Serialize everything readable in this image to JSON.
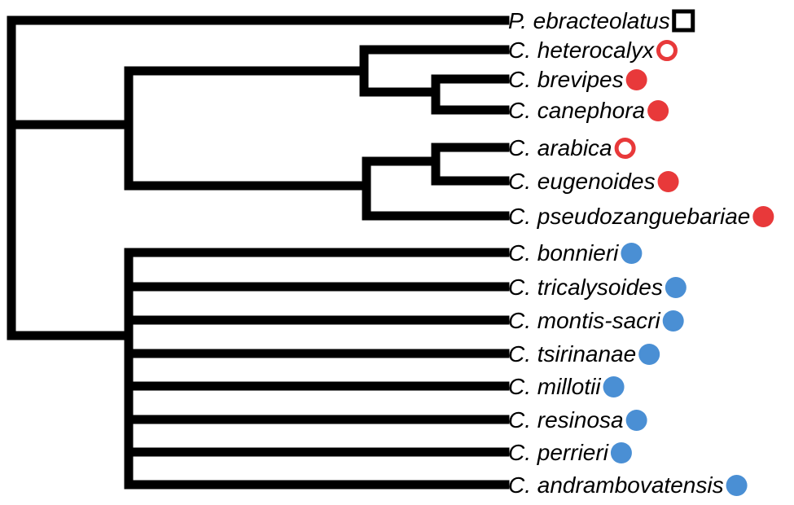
{
  "colors": {
    "branch": "#000000",
    "outgroup_marker": "#000000",
    "red_group": "#e8393a",
    "blue_group": "#4a8fd4"
  },
  "taxa": [
    {
      "name": "P. ebracteolatus",
      "marker": "square-open",
      "color": "#000000"
    },
    {
      "name": "C. heterocalyx",
      "marker": "circle-open",
      "color": "#e8393a"
    },
    {
      "name": "C. brevipes",
      "marker": "circle-filled",
      "color": "#e8393a"
    },
    {
      "name": "C. canephora",
      "marker": "circle-filled",
      "color": "#e8393a"
    },
    {
      "name": "C. arabica",
      "marker": "circle-open",
      "color": "#e8393a"
    },
    {
      "name": "C. eugenoides",
      "marker": "circle-filled",
      "color": "#e8393a"
    },
    {
      "name": "C. pseudozanguebariae",
      "marker": "circle-filled",
      "color": "#e8393a"
    },
    {
      "name": "C. bonnieri",
      "marker": "circle-filled",
      "color": "#4a8fd4"
    },
    {
      "name": "C. tricalysoides",
      "marker": "circle-filled",
      "color": "#4a8fd4"
    },
    {
      "name": "C. montis-sacri",
      "marker": "circle-filled",
      "color": "#4a8fd4"
    },
    {
      "name": "C. tsirinanae",
      "marker": "circle-filled",
      "color": "#4a8fd4"
    },
    {
      "name": "C. millotii",
      "marker": "circle-filled",
      "color": "#4a8fd4"
    },
    {
      "name": "C. resinosa",
      "marker": "circle-filled",
      "color": "#4a8fd4"
    },
    {
      "name": "C. perrieri",
      "marker": "circle-filled",
      "color": "#4a8fd4"
    },
    {
      "name": "C. andrambovatensis",
      "marker": "circle-filled",
      "color": "#4a8fd4"
    }
  ]
}
